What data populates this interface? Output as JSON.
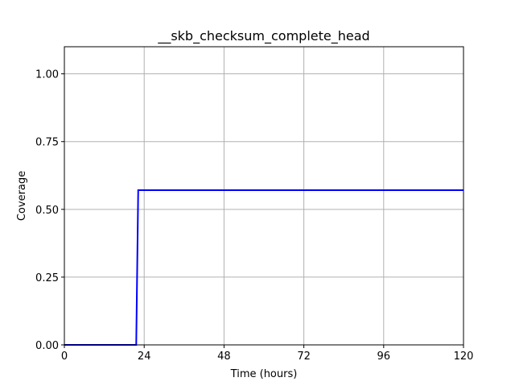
{
  "chart_data": {
    "type": "line",
    "title": "__skb_checksum_complete_head",
    "xlabel": "Time (hours)",
    "ylabel": "Coverage",
    "xlim": [
      0,
      120
    ],
    "ylim": [
      0,
      1.1
    ],
    "xticks": [
      0,
      24,
      48,
      72,
      96,
      120
    ],
    "xtick_labels": [
      "0",
      "24",
      "48",
      "72",
      "96",
      "120"
    ],
    "yticks": [
      0,
      0.25,
      0.5,
      0.75,
      1.0
    ],
    "ytick_labels": [
      "0.00",
      "0.25",
      "0.50",
      "0.75",
      "1.00"
    ],
    "grid": true,
    "series": [
      {
        "color": "#0000ff",
        "x": [
          0,
          21.6,
          22.2,
          120
        ],
        "y": [
          0,
          0,
          0.571,
          0.571
        ]
      }
    ]
  }
}
